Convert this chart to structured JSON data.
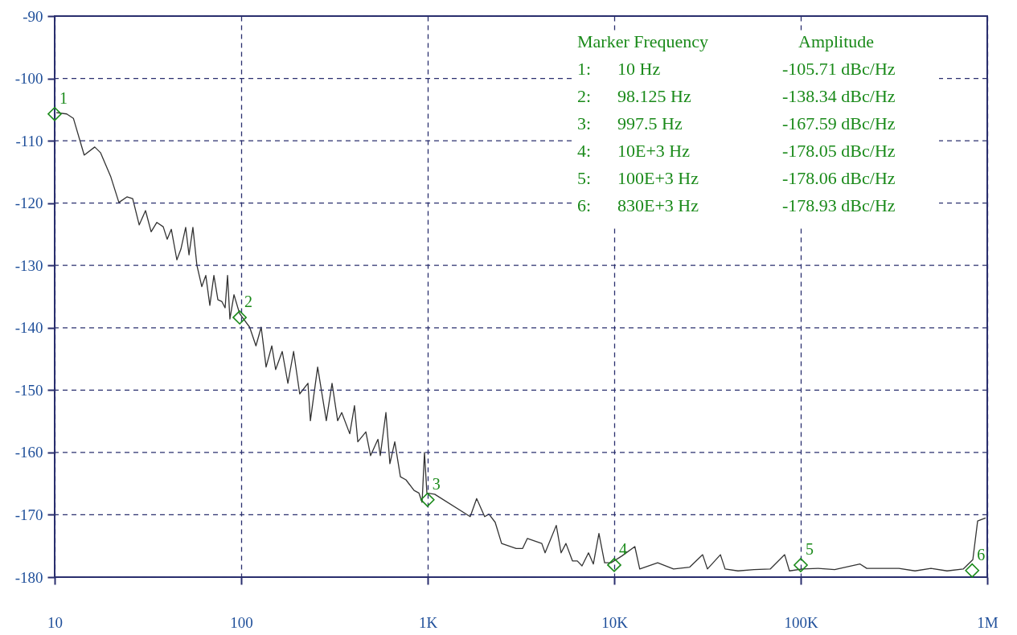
{
  "chart_data": {
    "type": "line",
    "log": "x",
    "grid": true,
    "line_style": "solid",
    "xlim": [
      10,
      1000000
    ],
    "xticks": [
      10,
      100,
      {
        "value": 1000,
        "label": "1K"
      },
      {
        "value": 10000,
        "label": "10K"
      },
      {
        "value": 100000,
        "label": "100K"
      },
      {
        "value": 1000000,
        "label": "1M"
      }
    ],
    "ylim": [
      -180,
      -90
    ],
    "yticks": [
      -90,
      -100,
      -110,
      -120,
      -130,
      -140,
      -150,
      -160,
      -170,
      -180
    ],
    "series": [
      {
        "color": "#333333",
        "x": [
          10.2,
          11.6,
          12.6,
          14.4,
          16.4,
          17.6,
          20,
          22.1,
          24.4,
          26.2,
          28.4,
          30.7,
          32.9,
          35.3,
          38.2,
          40.1,
          42.2,
          45.2,
          47.5,
          50.4,
          52.5,
          55.1,
          57.9,
          61.5,
          64.6,
          67.9,
          71.4,
          75,
          78.8,
          82,
          84.5,
          87,
          91.5,
          98,
          103,
          111,
          120,
          128,
          136,
          146,
          153,
          166,
          178,
          191,
          206,
          228,
          235,
          257,
          286,
          307,
          329,
          346,
          382,
          405,
          422,
          466,
          494,
          541,
          557,
          597,
          627,
          666,
          714,
          765,
          845,
          897,
          933,
          961,
          990,
          1090,
          1690,
          1830,
          2020,
          2130,
          2300,
          2490,
          2980,
          3230,
          3420,
          4090,
          4260,
          4890,
          5190,
          5510,
          5970,
          6340,
          6720,
          7280,
          7730,
          8280,
          8880,
          9610,
          11000,
          12900,
          13700,
          17100,
          20800,
          25400,
          29800,
          31600,
          37100,
          39300,
          46100,
          56200,
          68600,
          82000,
          87000,
          102000,
          124000,
          152000,
          208000,
          226000,
          336000,
          410000,
          499000,
          609000,
          743000,
          837000,
          888000,
          980000
        ],
        "values": [
          -105.5,
          -105.7,
          -106.4,
          -112.3,
          -111,
          -111.9,
          -115.8,
          -119.9,
          -119,
          -119.3,
          -123.5,
          -121.2,
          -124.6,
          -123.1,
          -123.8,
          -125.8,
          -124.2,
          -129.1,
          -127.4,
          -123.9,
          -128.3,
          -123.9,
          -130,
          -133.4,
          -131.6,
          -136.4,
          -131.6,
          -135.5,
          -135.8,
          -136.8,
          -131.6,
          -138.6,
          -134.7,
          -137.7,
          -138.6,
          -139.9,
          -142.9,
          -139.9,
          -146.3,
          -142.9,
          -146.7,
          -143.8,
          -148.9,
          -143.8,
          -150.6,
          -148.9,
          -154.9,
          -146.3,
          -154.9,
          -148.9,
          -154.9,
          -153.6,
          -157,
          -152.5,
          -158.3,
          -156.7,
          -160.5,
          -157.9,
          -160.5,
          -153.6,
          -161.8,
          -158.3,
          -163.9,
          -164.4,
          -166.1,
          -166.5,
          -168,
          -160,
          -166.5,
          -166.7,
          -170.3,
          -167.4,
          -170.3,
          -169.9,
          -171.2,
          -174.6,
          -175.4,
          -175.4,
          -173.8,
          -174.6,
          -176.1,
          -171.7,
          -176.1,
          -174.6,
          -177.4,
          -177.4,
          -178.2,
          -176.1,
          -177.9,
          -173,
          -177.7,
          -177.7,
          -176.6,
          -175.1,
          -178.7,
          -177.7,
          -178.7,
          -178.4,
          -176.4,
          -178.7,
          -176.4,
          -178.7,
          -179,
          -178.8,
          -178.7,
          -176.4,
          -179,
          -178.7,
          -178.6,
          -178.8,
          -177.9,
          -178.6,
          -178.6,
          -179,
          -178.6,
          -179,
          -178.7,
          -177.2,
          -171,
          -170.5
        ]
      },
      {
        "type": "scatter",
        "marker": "diamond",
        "color": "#1a8a1a",
        "x": [
          10,
          98.125,
          997.5,
          10000,
          100000,
          830000
        ],
        "values": [
          -105.71,
          -138.34,
          -167.59,
          -178.05,
          -178.06,
          -178.93
        ]
      }
    ],
    "annotations": [
      "Marker Frequency",
      "Amplitude",
      "1:",
      "10 Hz",
      "-105.71 dBc/Hz",
      "2:",
      "98.125 Hz",
      "-138.34 dBc/Hz",
      "3:",
      "997.5 Hz",
      "-167.59 dBc/Hz",
      "4:",
      "10E+3 Hz",
      "-178.05 dBc/Hz",
      "5:",
      "100E+3 Hz",
      "-178.06 dBc/Hz",
      "6:",
      "830E+3 Hz",
      "-178.93 dBc/Hz",
      {
        "text": "1",
        "x": 10,
        "y": -105.71
      },
      {
        "text": "2",
        "x": 98.125,
        "y": -138.34
      },
      {
        "text": "3",
        "x": 997.5,
        "y": -167.59
      },
      {
        "text": "4",
        "x": 10000,
        "y": -178.05
      },
      {
        "text": "5",
        "x": 100000,
        "y": -178.06
      },
      {
        "text": "6",
        "x": 830000,
        "y": -178.93
      }
    ]
  }
}
